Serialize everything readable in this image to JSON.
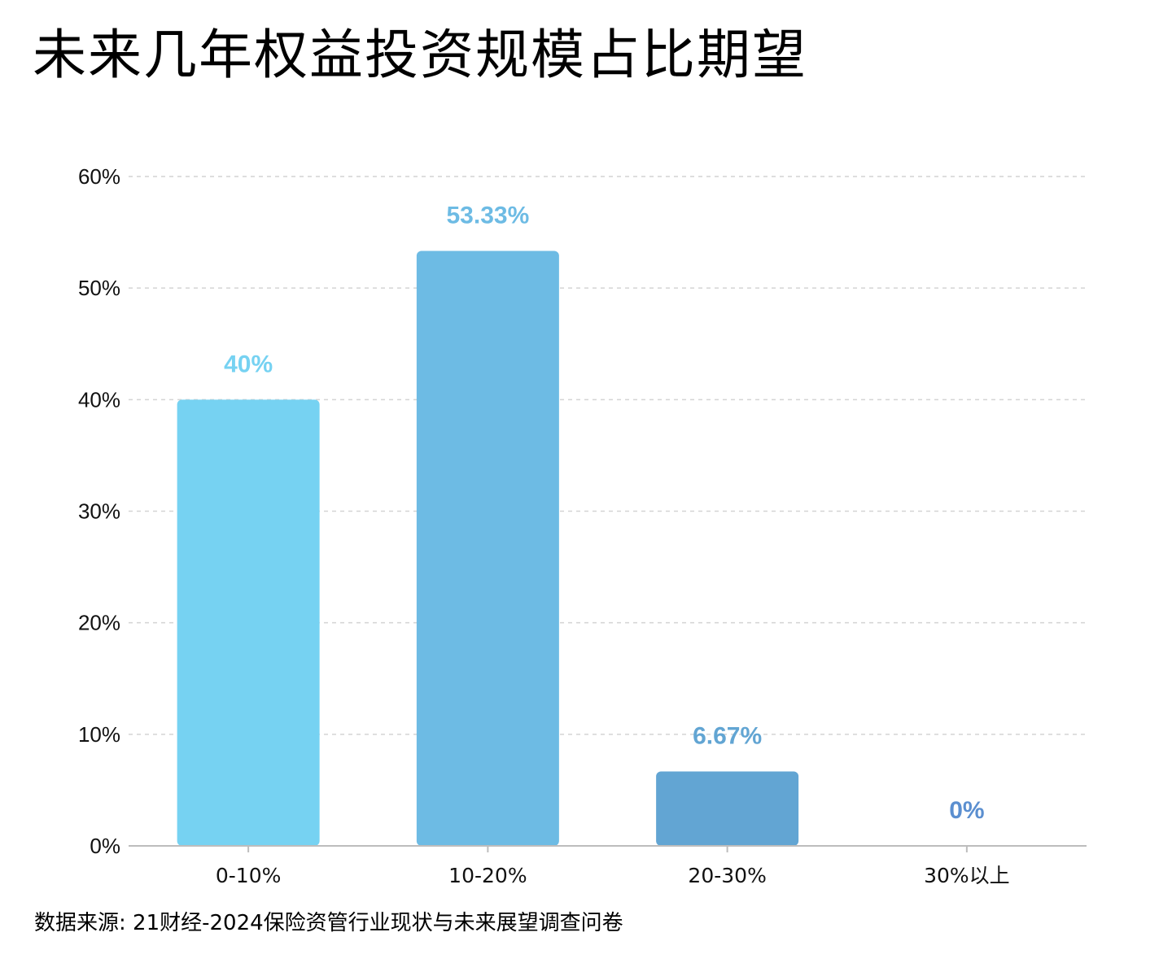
{
  "title": "未来几年权益投资规模占比期望",
  "source": "数据来源: 21财经-2024保险资管行业现状与未来展望调查问卷",
  "chart_data": {
    "type": "bar",
    "title": "未来几年权益投资规模占比期望",
    "categories": [
      "0-10%",
      "10-20%",
      "20-30%",
      "30%以上"
    ],
    "values": [
      40,
      53.33,
      6.67,
      0
    ],
    "data_labels": [
      "40%",
      "53.33%",
      "6.67%",
      "0%"
    ],
    "ylim": [
      0,
      60
    ],
    "yticks": [
      0,
      10,
      20,
      30,
      40,
      50,
      60
    ],
    "ytick_labels": [
      "0%",
      "10%",
      "20%",
      "30%",
      "40%",
      "50%",
      "60%"
    ],
    "bar_colors": [
      "#76d2f2",
      "#6dbbe4",
      "#62a5d3",
      "#5891cc"
    ],
    "label_colors": [
      "#76d2f2",
      "#6dbbe4",
      "#62a5d3",
      "#5b8fd0"
    ],
    "grid": true,
    "xlabel": "",
    "ylabel": ""
  }
}
